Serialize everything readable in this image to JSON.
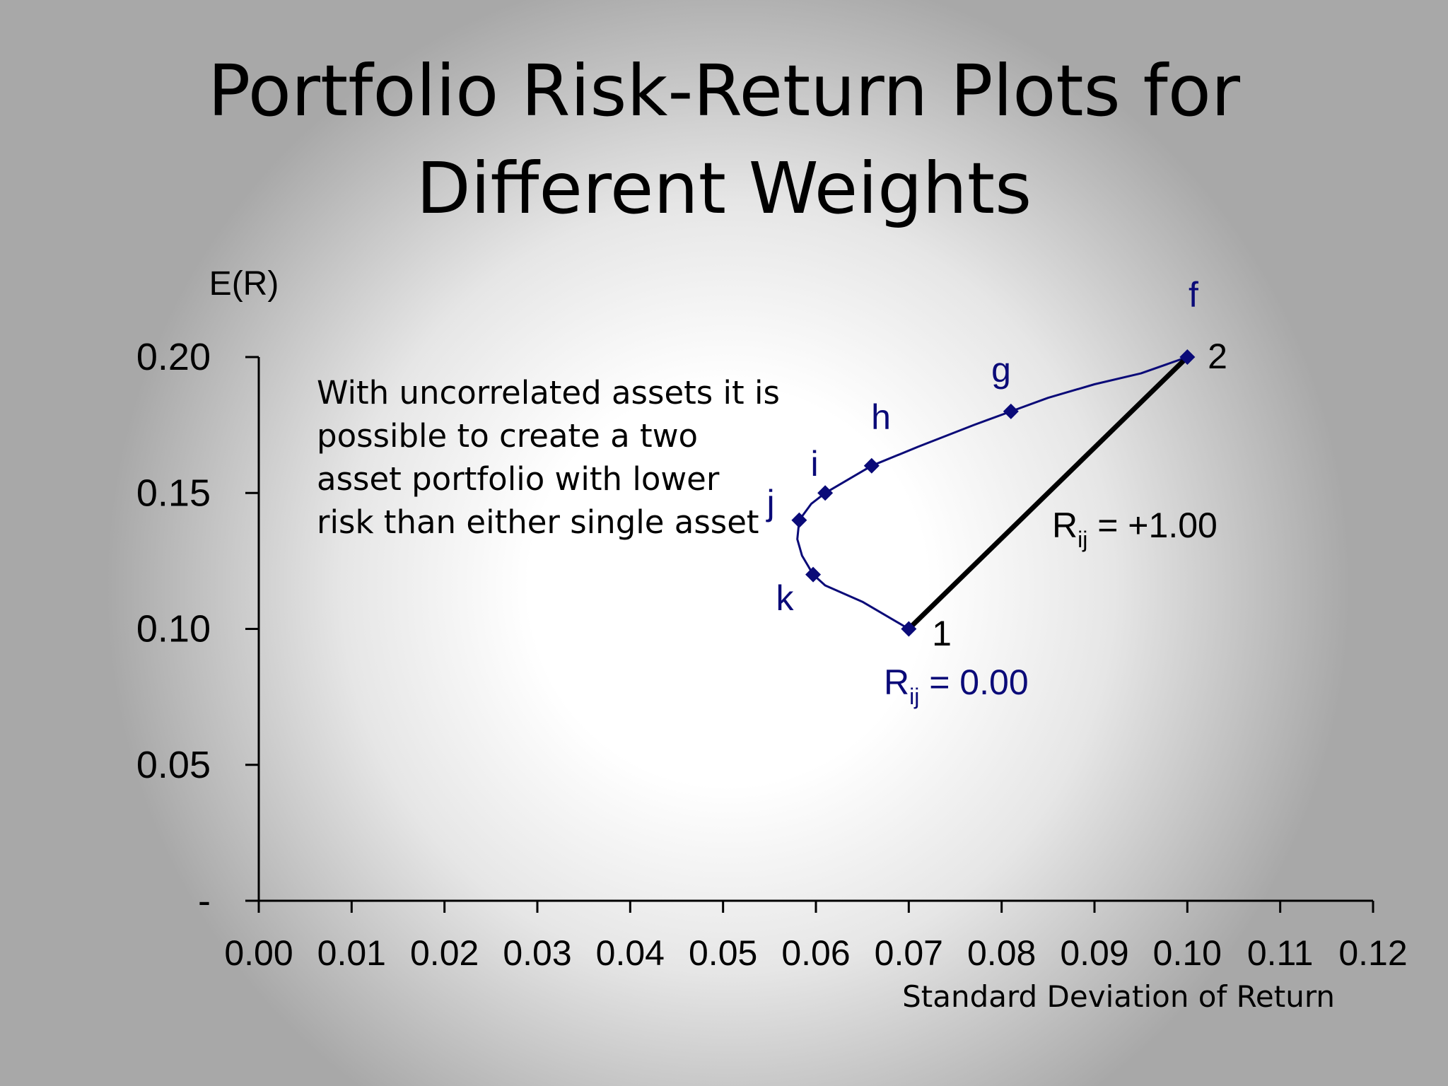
{
  "slide_title": [
    "Portfolio Risk-Return Plots for",
    "Different Weights"
  ],
  "note_lines": [
    "With uncorrelated assets it is",
    "possible to create a two",
    "asset portfolio with lower",
    "risk than either single asset"
  ],
  "chart_data": {
    "type": "line",
    "title": "",
    "xlabel": "Standard Deviation of Return",
    "ylabel": "E(R)",
    "xlim": [
      0,
      0.12
    ],
    "ylim": [
      0,
      0.2
    ],
    "x_ticks": [
      "0.00",
      "0.01",
      "0.02",
      "0.03",
      "0.04",
      "0.05",
      "0.06",
      "0.07",
      "0.08",
      "0.09",
      "0.10",
      "0.11",
      "0.12"
    ],
    "y_ticks": [
      {
        "value": 0,
        "label": "-"
      },
      {
        "value": 0.05,
        "label": "0.05"
      },
      {
        "value": 0.1,
        "label": "0.10"
      },
      {
        "value": 0.15,
        "label": "0.15"
      },
      {
        "value": 0.2,
        "label": "0.20"
      }
    ],
    "series": [
      {
        "name": "Rij = 0.00",
        "color": "#0a0a78",
        "curve": [
          {
            "x": 0.07,
            "y": 0.1
          },
          {
            "x": 0.065,
            "y": 0.11
          },
          {
            "x": 0.061,
            "y": 0.116
          },
          {
            "x": 0.0597,
            "y": 0.12
          },
          {
            "x": 0.0585,
            "y": 0.127
          },
          {
            "x": 0.058,
            "y": 0.133
          },
          {
            "x": 0.0582,
            "y": 0.14
          },
          {
            "x": 0.0595,
            "y": 0.146
          },
          {
            "x": 0.061,
            "y": 0.15
          },
          {
            "x": 0.064,
            "y": 0.156
          },
          {
            "x": 0.066,
            "y": 0.16
          },
          {
            "x": 0.071,
            "y": 0.167
          },
          {
            "x": 0.077,
            "y": 0.175
          },
          {
            "x": 0.081,
            "y": 0.18
          },
          {
            "x": 0.085,
            "y": 0.185
          },
          {
            "x": 0.09,
            "y": 0.19
          },
          {
            "x": 0.095,
            "y": 0.194
          },
          {
            "x": 0.1,
            "y": 0.2
          }
        ],
        "points": [
          {
            "label": "1",
            "x": 0.07,
            "y": 0.1
          },
          {
            "label": "k",
            "x": 0.0597,
            "y": 0.12
          },
          {
            "label": "j",
            "x": 0.0582,
            "y": 0.14
          },
          {
            "label": "i",
            "x": 0.061,
            "y": 0.15
          },
          {
            "label": "h",
            "x": 0.066,
            "y": 0.16
          },
          {
            "label": "g",
            "x": 0.081,
            "y": 0.18
          },
          {
            "label": "2",
            "x": 0.1,
            "y": 0.2
          }
        ]
      },
      {
        "name": "Rij = +1.00",
        "color": "#000000",
        "curve": [
          {
            "x": 0.07,
            "y": 0.1
          },
          {
            "x": 0.1,
            "y": 0.2
          }
        ]
      }
    ],
    "annotations": {
      "point_f": "f",
      "asset_1": "1",
      "asset_2": "2",
      "label_k": "k",
      "label_j": "j",
      "label_i": "i",
      "label_h": "h",
      "label_g": "g",
      "rij_zero_main": "R",
      "rij_zero_sub": "ij",
      "rij_zero_rest": " = 0.00",
      "rij_one_main": "R",
      "rij_one_sub": "ij",
      "rij_one_rest": " = +1.00"
    }
  }
}
